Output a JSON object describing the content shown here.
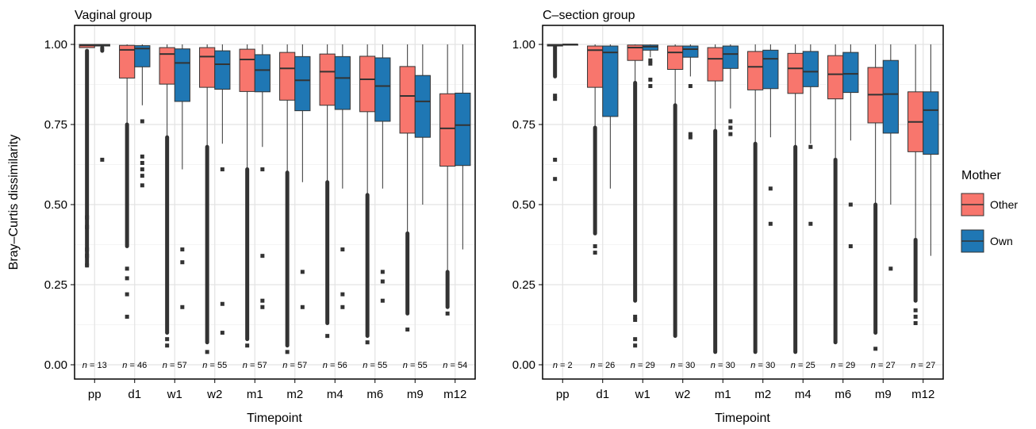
{
  "chart_data": {
    "type": "boxplot",
    "ylabel": "Bray–Curtis dissimilarity",
    "xlabel": "Timepoint",
    "ylim": [
      0,
      1.03
    ],
    "yticks": [
      "0.00",
      "0.25",
      "0.50",
      "0.75",
      "1.00"
    ],
    "ytick_values": [
      0,
      0.25,
      0.5,
      0.75,
      1.0
    ],
    "categories": [
      "pp",
      "d1",
      "w1",
      "w2",
      "m1",
      "m2",
      "m4",
      "m6",
      "m9",
      "m12"
    ],
    "grid": true,
    "legend": {
      "title": "Mother",
      "position": "right",
      "entries": [
        {
          "name": "Other",
          "color": "#F8766D"
        },
        {
          "name": "Own",
          "color": "#1F77B4"
        }
      ]
    },
    "panels": [
      {
        "title": "Vaginal group",
        "n_labels": [
          "n = 13",
          "n = 46",
          "n = 57",
          "n = 55",
          "n = 57",
          "n = 57",
          "n = 56",
          "n = 55",
          "n = 55",
          "n = 54"
        ],
        "series": [
          {
            "name": "Other",
            "boxes": [
              {
                "min": 0.99,
                "q1": 0.99,
                "median": 0.997,
                "q3": 1.0,
                "max": 1.0,
                "outliers_range": [
                  0.31,
                  0.98
                ],
                "outliers": [
                  0.31,
                  0.34,
                  0.36,
                  0.43,
                  0.46
                ]
              },
              {
                "min": 0.75,
                "q1": 0.895,
                "median": 0.983,
                "q3": 0.997,
                "max": 1.0,
                "outliers_range": [
                  0.37,
                  0.75
                ],
                "outliers": [
                  0.15,
                  0.22,
                  0.27,
                  0.3
                ]
              },
              {
                "min": 0.71,
                "q1": 0.876,
                "median": 0.97,
                "q3": 0.99,
                "max": 1.0,
                "outliers_range": [
                  0.1,
                  0.71
                ],
                "outliers": [
                  0.06,
                  0.08
                ]
              },
              {
                "min": 0.68,
                "q1": 0.866,
                "median": 0.962,
                "q3": 0.99,
                "max": 1.0,
                "outliers_range": [
                  0.07,
                  0.68
                ],
                "outliers": [
                  0.04
                ]
              },
              {
                "min": 0.61,
                "q1": 0.853,
                "median": 0.953,
                "q3": 0.985,
                "max": 1.0,
                "outliers_range": [
                  0.08,
                  0.61
                ],
                "outliers": [
                  0.06
                ]
              },
              {
                "min": 0.6,
                "q1": 0.826,
                "median": 0.925,
                "q3": 0.975,
                "max": 1.0,
                "outliers_range": [
                  0.06,
                  0.6
                ],
                "outliers": [
                  0.04
                ]
              },
              {
                "min": 0.57,
                "q1": 0.81,
                "median": 0.915,
                "q3": 0.97,
                "max": 1.0,
                "outliers_range": [
                  0.13,
                  0.57
                ],
                "outliers": [
                  0.09
                ]
              },
              {
                "min": 0.53,
                "q1": 0.79,
                "median": 0.891,
                "q3": 0.963,
                "max": 1.0,
                "outliers_range": [
                  0.09,
                  0.53
                ],
                "outliers": [
                  0.07
                ]
              },
              {
                "min": 0.41,
                "q1": 0.723,
                "median": 0.839,
                "q3": 0.931,
                "max": 1.0,
                "outliers_range": [
                  0.16,
                  0.41
                ],
                "outliers": [
                  0.11
                ]
              },
              {
                "min": 0.29,
                "q1": 0.62,
                "median": 0.738,
                "q3": 0.846,
                "max": 1.0,
                "outliers_range": [
                  0.18,
                  0.29
                ],
                "outliers": [
                  0.16
                ]
              }
            ]
          },
          {
            "name": "Own",
            "boxes": [
              {
                "min": 0.995,
                "q1": 0.995,
                "median": 0.998,
                "q3": 1.0,
                "max": 1.0,
                "outliers_range": [
                  0.98,
                  0.99
                ],
                "outliers": [
                  0.64
                ]
              },
              {
                "min": 0.81,
                "q1": 0.93,
                "median": 0.987,
                "q3": 0.996,
                "max": 1.0,
                "outliers_range": [
                  0.81,
                  0.81
                ],
                "outliers": [
                  0.56,
                  0.59,
                  0.61,
                  0.63,
                  0.65,
                  0.76
                ]
              },
              {
                "min": 0.61,
                "q1": 0.822,
                "median": 0.942,
                "q3": 0.986,
                "max": 1.0,
                "outliers_range": [
                  0.55,
                  0.55
                ],
                "outliers": [
                  0.18,
                  0.32,
                  0.36
                ]
              },
              {
                "min": 0.69,
                "q1": 0.86,
                "median": 0.938,
                "q3": 0.98,
                "max": 1.0,
                "outliers_range": [
                  0.59,
                  0.59
                ],
                "outliers": [
                  0.1,
                  0.19,
                  0.61
                ]
              },
              {
                "min": 0.68,
                "q1": 0.852,
                "median": 0.92,
                "q3": 0.968,
                "max": 1.0,
                "outliers_range": [
                  0.59,
                  0.59
                ],
                "outliers": [
                  0.18,
                  0.2,
                  0.34,
                  0.61
                ]
              },
              {
                "min": 0.57,
                "q1": 0.793,
                "median": 0.888,
                "q3": 0.962,
                "max": 1.0,
                "outliers_range": [
                  0.34,
                  0.34
                ],
                "outliers": [
                  0.18,
                  0.29
                ]
              },
              {
                "min": 0.55,
                "q1": 0.797,
                "median": 0.895,
                "q3": 0.962,
                "max": 1.0,
                "outliers_range": [
                  0.35,
                  0.35
                ],
                "outliers": [
                  0.18,
                  0.22,
                  0.36
                ]
              },
              {
                "min": 0.55,
                "q1": 0.76,
                "median": 0.87,
                "q3": 0.958,
                "max": 1.0,
                "outliers_range": [
                  0.34,
                  0.34
                ],
                "outliers": [
                  0.2,
                  0.26,
                  0.29
                ]
              },
              {
                "min": 0.5,
                "q1": 0.71,
                "median": 0.822,
                "q3": 0.903,
                "max": 1.0,
                "outliers_range": [
                  0.35,
                  0.35
                ],
                "outliers": []
              },
              {
                "min": 0.36,
                "q1": 0.622,
                "median": 0.748,
                "q3": 0.848,
                "max": 1.0,
                "outliers_range": [
                  0.36,
                  0.36
                ],
                "outliers": []
              }
            ]
          }
        ]
      },
      {
        "title": "C–section group",
        "n_labels": [
          "n = 2",
          "n = 26",
          "n = 29",
          "n = 30",
          "n = 30",
          "n = 30",
          "n = 25",
          "n = 29",
          "n = 27",
          "n = 27"
        ],
        "series": [
          {
            "name": "Other",
            "boxes": [
              {
                "min": 0.995,
                "q1": 0.995,
                "median": 0.998,
                "q3": 1.0,
                "max": 1.0,
                "outliers_range": [
                  0.9,
                  0.995
                ],
                "outliers": [
                  0.58,
                  0.64,
                  0.83,
                  0.84
                ]
              },
              {
                "min": 0.74,
                "q1": 0.866,
                "median": 0.982,
                "q3": 0.995,
                "max": 1.0,
                "outliers_range": [
                  0.41,
                  0.74
                ],
                "outliers": [
                  0.35,
                  0.37
                ]
              },
              {
                "min": 0.88,
                "q1": 0.95,
                "median": 0.99,
                "q3": 0.998,
                "max": 1.0,
                "outliers_range": [
                  0.2,
                  0.88
                ],
                "outliers": [
                  0.06,
                  0.08,
                  0.14,
                  0.15
                ]
              },
              {
                "min": 0.81,
                "q1": 0.922,
                "median": 0.975,
                "q3": 0.995,
                "max": 1.0,
                "outliers_range": [
                  0.09,
                  0.81
                ],
                "outliers": []
              },
              {
                "min": 0.73,
                "q1": 0.886,
                "median": 0.955,
                "q3": 0.99,
                "max": 1.0,
                "outliers_range": [
                  0.04,
                  0.73
                ],
                "outliers": []
              },
              {
                "min": 0.69,
                "q1": 0.858,
                "median": 0.93,
                "q3": 0.978,
                "max": 1.0,
                "outliers_range": [
                  0.04,
                  0.69
                ],
                "outliers": []
              },
              {
                "min": 0.68,
                "q1": 0.847,
                "median": 0.925,
                "q3": 0.972,
                "max": 1.0,
                "outliers_range": [
                  0.04,
                  0.68
                ],
                "outliers": []
              },
              {
                "min": 0.64,
                "q1": 0.83,
                "median": 0.907,
                "q3": 0.965,
                "max": 1.0,
                "outliers_range": [
                  0.07,
                  0.64
                ],
                "outliers": []
              },
              {
                "min": 0.5,
                "q1": 0.755,
                "median": 0.843,
                "q3": 0.928,
                "max": 1.0,
                "outliers_range": [
                  0.1,
                  0.5
                ],
                "outliers": [
                  0.05
                ]
              },
              {
                "min": 0.39,
                "q1": 0.665,
                "median": 0.758,
                "q3": 0.852,
                "max": 1.0,
                "outliers_range": [
                  0.2,
                  0.39
                ],
                "outliers": [
                  0.13,
                  0.15,
                  0.17
                ]
              }
            ]
          },
          {
            "name": "Own",
            "boxes": [
              {
                "min": 1.0,
                "q1": 1.0,
                "median": 1.0,
                "q3": 1.0,
                "max": 1.0,
                "outliers_range": [
                  1.0,
                  1.0
                ],
                "outliers": []
              },
              {
                "min": 0.55,
                "q1": 0.775,
                "median": 0.975,
                "q3": 0.995,
                "max": 1.0,
                "outliers_range": [
                  0.55,
                  0.55
                ],
                "outliers": []
              },
              {
                "min": 0.96,
                "q1": 0.982,
                "median": 0.993,
                "q3": 0.998,
                "max": 1.0,
                "outliers_range": [
                  0.96,
                  0.96
                ],
                "outliers": [
                  0.87,
                  0.89,
                  0.94,
                  0.95
                ]
              },
              {
                "min": 0.9,
                "q1": 0.96,
                "median": 0.985,
                "q3": 0.995,
                "max": 1.0,
                "outliers_range": [
                  0.9,
                  0.9
                ],
                "outliers": [
                  0.71,
                  0.72,
                  0.87
                ]
              },
              {
                "min": 0.8,
                "q1": 0.925,
                "median": 0.97,
                "q3": 0.995,
                "max": 1.0,
                "outliers_range": [
                  0.8,
                  0.8
                ],
                "outliers": [
                  0.72,
                  0.74,
                  0.76
                ]
              },
              {
                "min": 0.71,
                "q1": 0.862,
                "median": 0.955,
                "q3": 0.982,
                "max": 1.0,
                "outliers_range": [
                  0.71,
                  0.71
                ],
                "outliers": [
                  0.44,
                  0.55
                ]
              },
              {
                "min": 0.69,
                "q1": 0.868,
                "median": 0.915,
                "q3": 0.978,
                "max": 1.0,
                "outliers_range": [
                  0.69,
                  0.69
                ],
                "outliers": [
                  0.44,
                  0.68
                ]
              },
              {
                "min": 0.7,
                "q1": 0.85,
                "median": 0.908,
                "q3": 0.975,
                "max": 1.0,
                "outliers_range": [
                  0.7,
                  0.7
                ],
                "outliers": [
                  0.37,
                  0.5
                ]
              },
              {
                "min": 0.5,
                "q1": 0.723,
                "median": 0.845,
                "q3": 0.95,
                "max": 1.0,
                "outliers_range": [
                  0.5,
                  0.5
                ],
                "outliers": [
                  0.3
                ]
              },
              {
                "min": 0.34,
                "q1": 0.657,
                "median": 0.795,
                "q3": 0.852,
                "max": 1.0,
                "outliers_range": [
                  0.34,
                  0.34
                ],
                "outliers": []
              }
            ]
          }
        ]
      }
    ]
  }
}
